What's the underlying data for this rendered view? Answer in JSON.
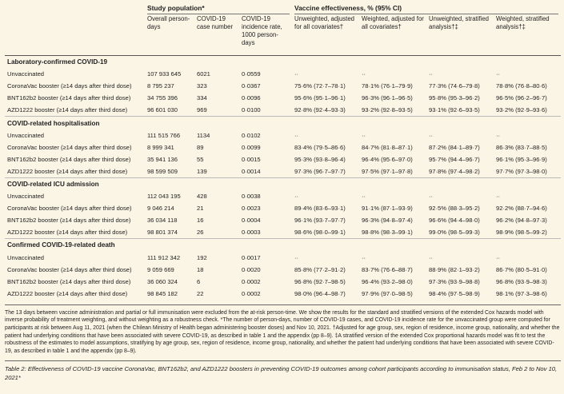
{
  "header": {
    "groups": [
      "Study population*",
      "Vaccine effectiveness, % (95% CI)"
    ],
    "columns": [
      "Overall person-days",
      "COVID-19 case number",
      "COVID-19 incidence rate, 1000 person-days",
      "Unweighted, adjusted for all covariates†",
      "Weighted, adjusted for all covariates†",
      "Unweighted, stratified analysis†‡",
      "Weighted, stratified analysis†‡"
    ]
  },
  "table": {
    "sections": [
      {
        "title": "Laboratory-confirmed COVID-19",
        "rows": [
          [
            "Unvaccinated",
            "107 933 645",
            "6021",
            "0·0559",
            "··",
            "··",
            "··",
            "··"
          ],
          [
            "CoronaVac booster (≥14 days after third dose)",
            "8 795 237",
            "323",
            "0·0367",
            "75·6% (72·7–78·1)",
            "78·1% (76·1–79·9)",
            "77·3% (74·6–79·8)",
            "78·8% (76·8–80·6)"
          ],
          [
            "BNT162b2 booster (≥14 days after third dose)",
            "34 755 396",
            "334",
            "0·0096",
            "95·6% (95·1–96·1)",
            "96·3% (96·1–96·5)",
            "95·8% (95·3–96·2)",
            "96·5% (96·2–96·7)"
          ],
          [
            "AZD1222 booster (≥14 days after third dose)",
            "96 601 030",
            "969",
            "0·0100",
            "92·8% (92·4–93·3)",
            "93·2% (92·8–93·5)",
            "93·1% (92·6–93·5)",
            "93·2% (92·9–93·6)"
          ]
        ]
      },
      {
        "title": "COVID-related hospitalisation",
        "rows": [
          [
            "Unvaccinated",
            "111 515 766",
            "1134",
            "0·0102",
            "··",
            "··",
            "··",
            "··"
          ],
          [
            "CoronaVac booster (≥14 days after third dose)",
            "8 999 341",
            "89",
            "0·0099",
            "83·4% (79·5–86·6)",
            "84·7% (81·8–87·1)",
            "87·2% (84·1–89·7)",
            "86·3% (83·7–88·5)"
          ],
          [
            "BNT162b2 booster (≥14 days after third dose)",
            "35 941 136",
            "55",
            "0·0015",
            "95·3% (93·8–96·4)",
            "96·4% (95·6–97·0)",
            "95·7% (94·4–96·7)",
            "96·1% (95·3–96·9)"
          ],
          [
            "AZD1222 booster (≥14 days after third dose)",
            "98 599 509",
            "139",
            "0·0014",
            "97·3% (96·7–97·7)",
            "97·5% (97·1–97·8)",
            "97·8% (97·4–98·2)",
            "97·7% (97·3–98·0)"
          ]
        ]
      },
      {
        "title": "COVID-related ICU admission",
        "rows": [
          [
            "Unvaccinated",
            "112 043 195",
            "428",
            "0·0038",
            "··",
            "··",
            "··",
            "··"
          ],
          [
            "CoronaVac booster (≥14 days after third dose)",
            "9 046 214",
            "21",
            "0·0023",
            "89·4% (83·6–93·1)",
            "91·1% (87·1–93·9)",
            "92·5% (88·3–95·2)",
            "92·2% (88·7–94·6)"
          ],
          [
            "BNT162b2 booster (≥14 days after third dose)",
            "36 034 118",
            "16",
            "0·0004",
            "96·1% (93·7–97·7)",
            "96·3% (94·8–97·4)",
            "96·6% (94·4–98·0)",
            "96·2% (94·8–97·3)"
          ],
          [
            "AZD1222 booster (≥14 days after third dose)",
            "98 801 374",
            "26",
            "0·0003",
            "98·6% (98·0–99·1)",
            "98·8% (98·3–99·1)",
            "99·0% (98·5–99·3)",
            "98·9% (98·5–99·2)"
          ]
        ]
      },
      {
        "title": "Confirmed COVID-19-related death",
        "rows": [
          [
            "Unvaccinated",
            "111 912 342",
            "192",
            "0·0017",
            "··",
            "··",
            "··",
            "··"
          ],
          [
            "CoronaVac booster (≥14 days after third dose)",
            "9 059 669",
            "18",
            "0·0020",
            "85·8% (77·2–91·2)",
            "83·7% (76·6–88·7)",
            "88·9% (82·1–93·2)",
            "86·7% (80·5–91·0)"
          ],
          [
            "BNT162b2 booster (≥14 days after third dose)",
            "36 060 324",
            "6",
            "0·0002",
            "96·8% (92·7–98·5)",
            "96·4% (93·2–98·0)",
            "97·3% (93·9–98·8)",
            "96·8% (93·9–98·3)"
          ],
          [
            "AZD1222 booster (≥14 days after third dose)",
            "98 845 182",
            "22",
            "0·0002",
            "98·0% (96·4–98·7)",
            "97·9% (97·0–98·5)",
            "98·4% (97·5–98·9)",
            "98·1% (97·3–98·6)"
          ]
        ]
      }
    ]
  },
  "footnote": "The 13 days between vaccine administration and partial or full immunisation were excluded from the at-risk person-time. We show the results for the standard and stratified versions of the extended Cox hazards model with inverse probability of treatment weighting, and without weighting as a robustness check. *The number of person-days, number of COVID-19 cases, and COVID-19 incidence rate for the unvaccinated group were computed for participants at risk between Aug 11, 2021 (when the Chilean Ministry of Health began administering booster doses) and Nov 10, 2021. †Adjusted for age group, sex, region of residence, income group, nationality, and whether the patient had underlying conditions that have been associated with severe COVID-19, as described in table 1 and the appendix (pp 8–9). ‡A stratified version of the extended Cox proportional hazards model was fit to test the robustness of the estimates to model assumptions, stratifying by age group, sex, region of residence, income group, nationality, and whether the patient had underlying conditions that have been associated with severe COVID-19, as described in table 1 and the appendix (pp 8–9).",
  "caption": "Table 2: Effectiveness of COVID-19 vaccine CoronaVac, BNT162b2, and AZD1222 boosters in preventing COVID-19 outcomes among cohort participants according to immunisation status, Feb 2 to Nov 10, 2021*"
}
